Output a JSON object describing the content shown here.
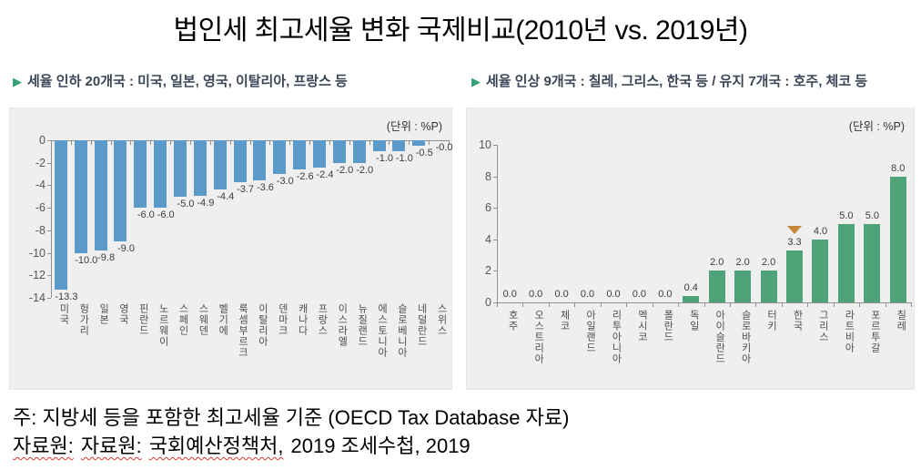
{
  "title": "법인세 최고세율 변화 국제비교(2010년 vs. 2019년)",
  "ui": {
    "pointer_glyph": "▶"
  },
  "chart_data": [
    {
      "type": "bar",
      "title": "세율 인하 국가",
      "subtitle": "세율 인하 20개국 : 미국, 일본, 영국, 이탈리아, 프랑스 등",
      "unit": "(단위 : %P)",
      "categories": [
        "미국",
        "헝가리",
        "일본",
        "영국",
        "핀란드",
        "노르웨이",
        "스페인",
        "스웨덴",
        "벨기에",
        "룩셈부르크",
        "이탈리아",
        "덴마크",
        "캐나다",
        "프랑스",
        "이스라엘",
        "뉴질랜드",
        "에스토니아",
        "슬로베니아",
        "네덜란드",
        "스위스"
      ],
      "values": [
        -13.3,
        -10.0,
        -9.8,
        -9.0,
        -6.0,
        -6.0,
        -5.0,
        -4.9,
        -4.4,
        -3.7,
        -3.6,
        -3.0,
        -2.6,
        -2.4,
        -2.0,
        -2.0,
        -1.0,
        -1.0,
        -0.5,
        -0.0
      ],
      "value_labels": [
        "-13.3",
        "-10.0",
        "-9.8",
        "-9.0",
        "-6.0",
        "-6.0",
        "-5.0",
        "-4.9",
        "-4.4",
        "-3.7",
        "-3.6",
        "-3.0",
        "-2.6",
        "-2.4",
        "-2.0",
        "-2.0",
        "-1.0",
        "-1.0",
        "-0.5",
        "-0.0"
      ],
      "ylim": [
        -14,
        0
      ],
      "yticks": [
        0,
        -2,
        -4,
        -6,
        -8,
        -10,
        -12,
        -14
      ],
      "bar_color": "#5b9ac8",
      "grid": false,
      "legend": null
    },
    {
      "type": "bar",
      "title": "세율 인상/유지 국가",
      "subtitle": "세율 인상 9개국 : 칠레, 그리스, 한국 등 / 유지 7개국 : 호주, 체코 등",
      "unit": "(단위 : %P)",
      "categories": [
        "호주",
        "오스트리아",
        "체코",
        "아일랜드",
        "리투아니아",
        "멕시코",
        "폴란드",
        "독일",
        "아이슬란드",
        "슬로바키아",
        "터키",
        "한국",
        "그리스",
        "라트비아",
        "포르투갈",
        "칠레"
      ],
      "values": [
        0.0,
        0.0,
        0.0,
        0.0,
        0.0,
        0.0,
        0.0,
        0.4,
        2.0,
        2.0,
        2.0,
        3.3,
        4.0,
        5.0,
        5.0,
        8.0
      ],
      "value_labels": [
        "0.0",
        "0.0",
        "0.0",
        "0.0",
        "0.0",
        "0.0",
        "0.0",
        "0.4",
        "2.0",
        "2.0",
        "2.0",
        "3.3",
        "4.0",
        "5.0",
        "5.0",
        "8.0"
      ],
      "ylim": [
        0,
        10
      ],
      "yticks": [
        10,
        8,
        6,
        4,
        2,
        0
      ],
      "bar_color": "#4fa378",
      "grid": false,
      "legend": null,
      "marker": {
        "category": "한국",
        "index": 11,
        "shape": "triangle-down",
        "color": "#c8883c"
      }
    }
  ],
  "footnote": {
    "line1": "주: 지방세 등을 포함한 최고세율 기준 (OECD Tax Database 자료)",
    "line2_parts": {
      "word1": "자료원:",
      "word2": "자료원:",
      "word3": "국회예산정책처,",
      "rest": "2019 조세수첩, 2019"
    }
  }
}
